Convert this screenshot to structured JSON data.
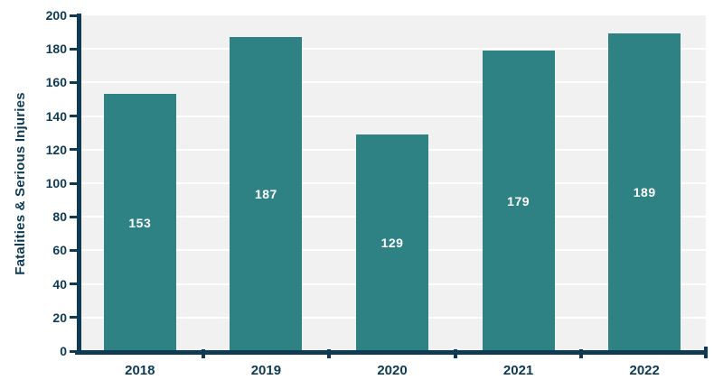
{
  "chart": {
    "y_axis_title": "Fatalities & Serious Injuries"
  },
  "chart_data": {
    "type": "bar",
    "categories": [
      "2018",
      "2019",
      "2020",
      "2021",
      "2022"
    ],
    "values": [
      153,
      187,
      129,
      179,
      189
    ],
    "title": "",
    "xlabel": "",
    "ylabel": "Fatalities & Serious Injuries",
    "ylim": [
      0,
      200
    ],
    "ytick_step": 20,
    "grid": true,
    "legend": "none",
    "bar_value_labels": [
      "153",
      "187",
      "129",
      "179",
      "189"
    ],
    "colors": {
      "bar": "#2F8284",
      "axis": "#0E3A53",
      "plot_background": "#F1F1F1",
      "gridline": "#FFFFFF",
      "bar_label": "#FFFFFF",
      "canvas_background": "#FFFFFF"
    }
  }
}
